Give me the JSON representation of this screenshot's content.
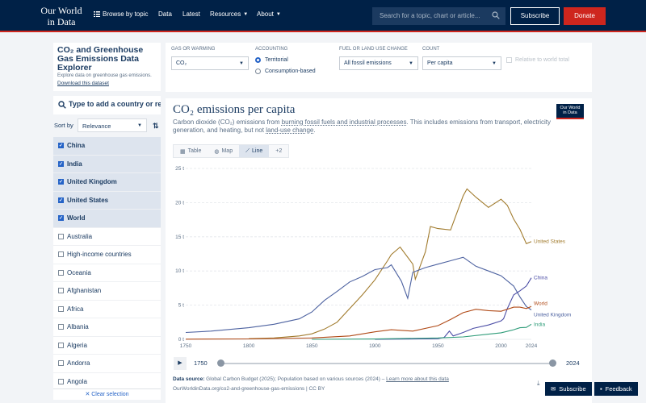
{
  "header": {
    "logo": [
      "Our World",
      "in Data"
    ],
    "nav": [
      "Browse by topic",
      "Data",
      "Latest",
      "Resources",
      "About"
    ],
    "search_placeholder": "Search for a topic, chart or article...",
    "subscribe": "Subscribe",
    "donate": "Donate"
  },
  "sidebar": {
    "title": "CO₂ and Greenhouse Gas Emissions Data Explorer",
    "subtitle": "Explore data on greenhouse gas emissions.",
    "download": "Download this dataset",
    "search_placeholder": "Type to add a country or region...",
    "sort_label": "Sort by",
    "sort_value": "Relevance",
    "entities": [
      {
        "name": "China",
        "selected": true
      },
      {
        "name": "India",
        "selected": true
      },
      {
        "name": "United Kingdom",
        "selected": true
      },
      {
        "name": "United States",
        "selected": true
      },
      {
        "name": "World",
        "selected": true
      },
      {
        "name": "Australia",
        "selected": false
      },
      {
        "name": "High-income countries",
        "selected": false
      },
      {
        "name": "Oceania",
        "selected": false
      },
      {
        "name": "Afghanistan",
        "selected": false
      },
      {
        "name": "Africa",
        "selected": false
      },
      {
        "name": "Albania",
        "selected": false
      },
      {
        "name": "Algeria",
        "selected": false
      },
      {
        "name": "Andorra",
        "selected": false
      },
      {
        "name": "Angola",
        "selected": false
      }
    ],
    "clear": "✕ Clear selection"
  },
  "controls": {
    "gas_label": "GAS OR WARMING",
    "gas_value": "CO₂",
    "accounting_label": "ACCOUNTING",
    "accounting_options": [
      "Territorial",
      "Consumption-based"
    ],
    "fuel_label": "FUEL OR LAND USE CHANGE",
    "fuel_value": "All fossil emissions",
    "count_label": "COUNT",
    "count_value": "Per capita",
    "relative_label": "Relative to world total"
  },
  "chart": {
    "title": "CO₂ emissions per capita",
    "subtitle_parts": [
      "Carbon dioxide (CO₂) emissions from ",
      "burning fossil fuels and industrial processes",
      ". This includes emissions from transport, electricity generation, and heating, but not ",
      "land-use change",
      "."
    ],
    "badge": [
      "Our World",
      "in Data"
    ],
    "tabs": [
      "Table",
      "Map",
      "Line",
      "+2"
    ],
    "active_tab": "Line",
    "timeline_start": "1750",
    "timeline_end": "2024",
    "source_label": "Data source:",
    "source_text": " Global Carbon Budget (2025); Population based on various sources (2024) – ",
    "source_link": "Learn more about this data",
    "url": "OurWorldinData.org/co2-and-greenhouse-gas-emissions | CC BY",
    "float_subscribe": "Subscribe",
    "float_feedback": "Feedback"
  },
  "colors": {
    "navy": "#002147",
    "red": "#ce261e",
    "china": "#4c4ea6",
    "india": "#2f9c79",
    "uk": "#4d62a0",
    "us": "#a17b2d",
    "world": "#b04a17"
  },
  "chart_data": {
    "type": "line",
    "title": "CO₂ emissions per capita",
    "ylabel": "",
    "xlabel": "",
    "ylim": [
      0,
      25
    ],
    "xlim": [
      1750,
      2024
    ],
    "yticks": [
      "0 t",
      "5 t",
      "10 t",
      "15 t",
      "20 t",
      "25 t"
    ],
    "xticks": [
      "1750",
      "1800",
      "1850",
      "1900",
      "1950",
      "2000",
      "2024"
    ],
    "series": [
      {
        "name": "United States",
        "color": "#a17b2d",
        "x": [
          1800,
          1820,
          1840,
          1850,
          1860,
          1870,
          1880,
          1890,
          1900,
          1910,
          1913,
          1920,
          1930,
          1932,
          1940,
          1944,
          1950,
          1960,
          1970,
          1973,
          1980,
          1990,
          2000,
          2005,
          2010,
          2015,
          2020,
          2024
        ],
        "y": [
          0.1,
          0.2,
          0.5,
          0.8,
          1.5,
          2.5,
          4.5,
          6.5,
          8.7,
          11.5,
          12.4,
          13.5,
          11.0,
          8.8,
          12.8,
          16.5,
          16.2,
          16.0,
          21.0,
          22.0,
          20.8,
          19.3,
          20.5,
          19.6,
          17.6,
          16.1,
          14.0,
          14.3
        ]
      },
      {
        "name": "United Kingdom",
        "color": "#4d62a0",
        "x": [
          1750,
          1770,
          1800,
          1820,
          1840,
          1850,
          1860,
          1870,
          1880,
          1890,
          1900,
          1910,
          1913,
          1921,
          1926,
          1930,
          1940,
          1950,
          1960,
          1970,
          1980,
          1990,
          2000,
          2010,
          2015,
          2020,
          2024
        ],
        "y": [
          1.0,
          1.2,
          1.7,
          2.2,
          3.0,
          4.0,
          5.7,
          7.0,
          8.4,
          9.2,
          10.2,
          10.5,
          10.9,
          8.5,
          6.0,
          9.8,
          10.5,
          11.0,
          11.5,
          12.0,
          10.7,
          10.0,
          9.3,
          7.8,
          6.2,
          4.8,
          4.3
        ]
      },
      {
        "name": "China",
        "color": "#4c4ea6",
        "x": [
          1900,
          1950,
          1955,
          1959,
          1962,
          1970,
          1978,
          1990,
          2000,
          2002,
          2005,
          2010,
          2015,
          2020,
          2024
        ],
        "y": [
          0.0,
          0.1,
          0.3,
          1.2,
          0.5,
          1.0,
          1.6,
          2.1,
          2.7,
          3.0,
          4.5,
          6.5,
          7.1,
          7.8,
          9.0
        ]
      },
      {
        "name": "World",
        "color": "#b04a17",
        "x": [
          1750,
          1800,
          1850,
          1880,
          1900,
          1913,
          1930,
          1950,
          1960,
          1970,
          1980,
          1990,
          2000,
          2010,
          2015,
          2020,
          2024
        ],
        "y": [
          0.02,
          0.06,
          0.2,
          0.5,
          1.1,
          1.4,
          1.2,
          2.0,
          2.9,
          3.9,
          4.4,
          4.2,
          4.1,
          4.7,
          4.7,
          4.5,
          4.8
        ]
      },
      {
        "name": "India",
        "color": "#2f9c79",
        "x": [
          1850,
          1900,
          1950,
          1970,
          1990,
          2000,
          2010,
          2015,
          2020,
          2024
        ],
        "y": [
          0.0,
          0.05,
          0.2,
          0.35,
          0.75,
          0.95,
          1.4,
          1.7,
          1.75,
          2.2
        ]
      }
    ]
  }
}
